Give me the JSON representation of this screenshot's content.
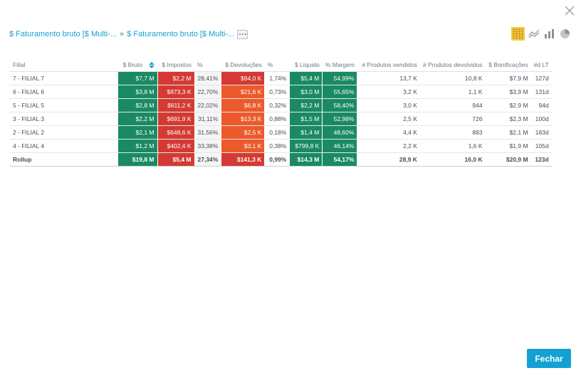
{
  "breadcrumb": {
    "items": [
      "$ Faturamento bruto [$ Multi-...",
      "$ Faturamento bruto [$ Multi-..."
    ],
    "separator": "»"
  },
  "viz_switch": {
    "options": [
      {
        "icon": "table-icon",
        "active": true
      },
      {
        "icon": "line-chart-icon",
        "active": false
      },
      {
        "icon": "bar-chart-icon",
        "active": false
      },
      {
        "icon": "pie-chart-icon",
        "active": false
      }
    ]
  },
  "table": {
    "headers": [
      "Filial",
      "$ Bruto",
      "$ Impostos",
      "%",
      "$ Devoluções",
      "%",
      "$ Líquido",
      "% Margem",
      "# Produtos vendidos",
      "# Produtos devolvidos",
      "$ Bonificações",
      "#d LT"
    ],
    "rows": [
      [
        "7 - FILIAL 7",
        "$7,7 M",
        "$2,2 M",
        "28,41%",
        "$94,0 K",
        "1,74%",
        "$5,4 M",
        "54,99%",
        "13,7 K",
        "10,8 K",
        "$7,9 M",
        "127d"
      ],
      [
        "6 - FILIAL 6",
        "$3,8 M",
        "$873,3 K",
        "22,70%",
        "$21,6 K",
        "0,73%",
        "$3,0 M",
        "55,65%",
        "3,2 K",
        "1,1 K",
        "$3,9 M",
        "131d"
      ],
      [
        "5 - FILIAL 5",
        "$2,8 M",
        "$611,2 K",
        "22,02%",
        "$6,8 K",
        "0,32%",
        "$2,2 M",
        "58,40%",
        "3,0 K",
        "944",
        "$2,9 M",
        "94d"
      ],
      [
        "3 - FILIAL 3",
        "$2,2 M",
        "$691,9 K",
        "31,11%",
        "$13,3 K",
        "0,88%",
        "$1,5 M",
        "52,98%",
        "2,5 K",
        "726",
        "$2,3 M",
        "100d"
      ],
      [
        "2 - FILIAL 2",
        "$2,1 M",
        "$648,6 K",
        "31,56%",
        "$2,5 K",
        "0,18%",
        "$1,4 M",
        "48,60%",
        "4,4 K",
        "883",
        "$2,1 M",
        "183d"
      ],
      [
        "4 - FILIAL 4",
        "$1,2 M",
        "$402,4 K",
        "33,38%",
        "$3,1 K",
        "0,38%",
        "$799,8 K",
        "46,14%",
        "2,2 K",
        "1,6 K",
        "$1,9 M",
        "105d"
      ]
    ],
    "rollup": [
      "Rollup",
      "$19,8 M",
      "$5,4 M",
      "27,34%",
      "$141,3 K",
      "0,99%",
      "$14,3 M",
      "54,17%",
      "28,9 K",
      "16,0 K",
      "$20,9 M",
      "123d"
    ],
    "cell_colors": {
      "green": "#1a8a62",
      "red": "#d43a33",
      "orange": "#ec5a2c"
    }
  },
  "actions": {
    "close_label": "Fechar"
  },
  "colors": {
    "accent": "#14a0d2",
    "active_viz": "#f5cc42"
  }
}
